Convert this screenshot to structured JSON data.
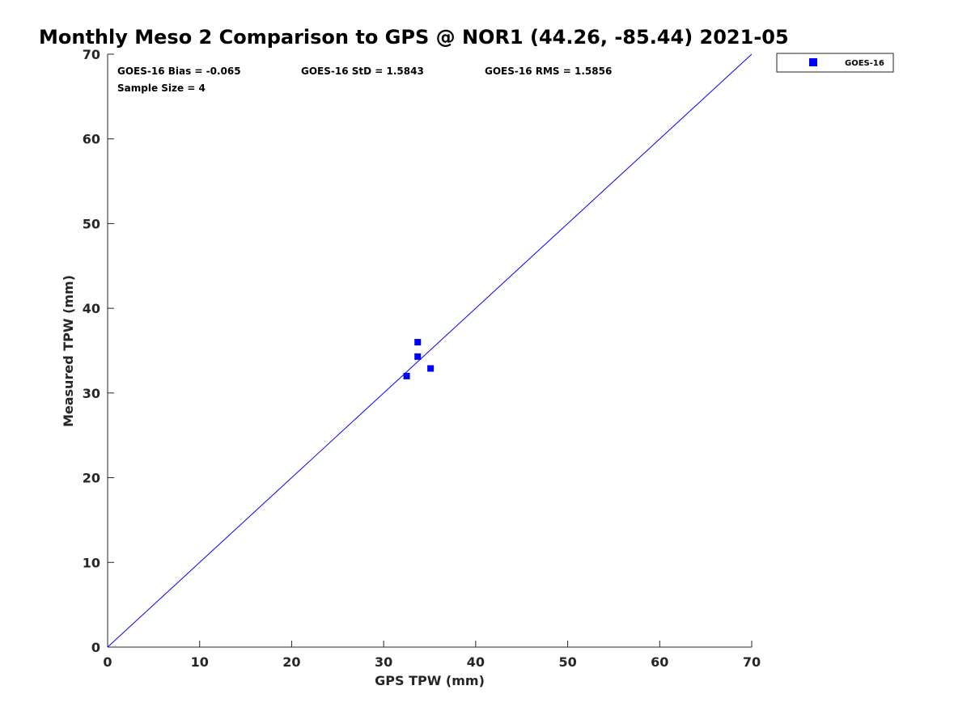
{
  "chart_data": {
    "type": "scatter",
    "title": "Monthly Meso 2 Comparison to GPS @ NOR1 (44.26, -85.44) 2021-05",
    "xlabel": "GPS TPW (mm)",
    "ylabel": "Measured TPW (mm)",
    "xlim": [
      0,
      70
    ],
    "ylim": [
      0,
      70
    ],
    "x_ticks": [
      "0",
      "10",
      "20",
      "30",
      "40",
      "50",
      "60",
      "70"
    ],
    "y_ticks": [
      "0",
      "10",
      "20",
      "30",
      "40",
      "50",
      "60",
      "70"
    ],
    "grid": false,
    "legend_position": "outside-top-right",
    "series": [
      {
        "name": "GOES-16",
        "color": "#0000ff",
        "marker": "square",
        "points": [
          {
            "x": 32.5,
            "y": 32.0
          },
          {
            "x": 33.7,
            "y": 36.0
          },
          {
            "x": 33.7,
            "y": 34.3
          },
          {
            "x": 35.1,
            "y": 32.9
          }
        ]
      }
    ],
    "reference_line": {
      "from": [
        0,
        0
      ],
      "to": [
        70,
        70
      ],
      "color": "#0000ff"
    },
    "annotations": [
      "GOES-16 Bias = -0.065",
      "GOES-16 StD = 1.5843",
      "GOES-16 RMS = 1.5856",
      "Sample Size = 4"
    ]
  }
}
